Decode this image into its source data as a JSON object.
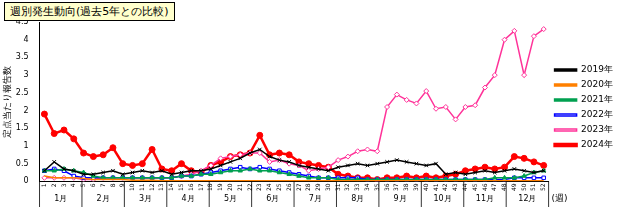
{
  "chart_data": {
    "type": "line",
    "title": "週別発生動向(過去5年との比較)",
    "y_label": "定点当たり報告数",
    "x_label": "(週)",
    "categories": [
      "1",
      "2",
      "3",
      "4",
      "5",
      "6",
      "7",
      "8",
      "9",
      "10",
      "11",
      "12",
      "13",
      "14",
      "15",
      "16",
      "17",
      "18",
      "19",
      "20",
      "21",
      "22",
      "23",
      "24",
      "25",
      "26",
      "27",
      "28",
      "29",
      "30",
      "31",
      "32",
      "33",
      "34",
      "35",
      "36",
      "37",
      "38",
      "39",
      "40",
      "41",
      "42",
      "43",
      "44",
      "45",
      "46",
      "47",
      "48",
      "49",
      "50",
      "51",
      "52"
    ],
    "months": [
      "1月",
      "2月",
      "3月",
      "4月",
      "5月",
      "6月",
      "7月",
      "8月",
      "9月",
      "10月",
      "11月",
      "12月"
    ],
    "ylim": [
      0,
      4.5
    ],
    "yticks": [
      0,
      0.5,
      1,
      1.5,
      2,
      2.5,
      3,
      3.5,
      4,
      4.5
    ],
    "grid": false,
    "legend": "right",
    "series": [
      {
        "name": "2019年",
        "color": "#000000",
        "marker": "cross",
        "values": [
          0.3,
          0.55,
          0.35,
          0.3,
          0.2,
          0.2,
          0.25,
          0.3,
          0.2,
          0.25,
          0.3,
          0.25,
          0.3,
          0.2,
          0.25,
          0.3,
          0.3,
          0.35,
          0.45,
          0.55,
          0.65,
          0.8,
          0.9,
          0.7,
          0.6,
          0.55,
          0.45,
          0.4,
          0.35,
          0.3,
          0.4,
          0.45,
          0.5,
          0.45,
          0.5,
          0.55,
          0.6,
          0.55,
          0.5,
          0.45,
          0.5,
          0.2,
          0.25,
          0.2,
          0.25,
          0.3,
          0.25,
          0.3,
          0.35,
          0.3,
          0.25,
          0.3
        ]
      },
      {
        "name": "2020年",
        "color": "#ff8000",
        "marker": "none",
        "values": [
          0.15,
          0.1,
          0.1,
          0.1,
          0.08,
          0.05,
          0.05,
          0.05,
          0.05,
          0.03,
          0.03,
          0.03,
          0.02,
          0.02,
          0.02,
          0.02,
          0.02,
          0.02,
          0.02,
          0.02,
          0.02,
          0.02,
          0.02,
          0.02,
          0.02,
          0.02,
          0.02,
          0.02,
          0.02,
          0.02,
          0.02,
          0.02,
          0.02,
          0.02,
          0.02,
          0.02,
          0.02,
          0.02,
          0.02,
          0.02,
          0.02,
          0.02,
          0.02,
          0.02,
          0.02,
          0.02,
          0.02,
          0.02,
          0.02,
          0.02,
          0.02,
          0.02
        ]
      },
      {
        "name": "2021年",
        "color": "#00a050",
        "marker": "triangle",
        "values": [
          0.3,
          0.3,
          0.35,
          0.3,
          0.25,
          0.15,
          0.1,
          0.1,
          0.1,
          0.1,
          0.1,
          0.1,
          0.1,
          0.1,
          0.15,
          0.15,
          0.2,
          0.2,
          0.25,
          0.3,
          0.3,
          0.35,
          0.3,
          0.3,
          0.25,
          0.2,
          0.15,
          0.1,
          0.1,
          0.1,
          0.05,
          0.05,
          0.05,
          0.05,
          0.05,
          0.05,
          0.05,
          0.05,
          0.05,
          0.05,
          0.05,
          0.05,
          0.05,
          0.05,
          0.05,
          0.05,
          0.1,
          0.1,
          0.1,
          0.15,
          0.25,
          0.3
        ]
      },
      {
        "name": "2022年",
        "color": "#0000ff",
        "marker": "square",
        "values": [
          0.3,
          0.35,
          0.3,
          0.15,
          0.1,
          0.1,
          0.1,
          0.1,
          0.1,
          0.1,
          0.1,
          0.1,
          0.1,
          0.1,
          0.15,
          0.15,
          0.2,
          0.25,
          0.3,
          0.35,
          0.4,
          0.35,
          0.4,
          0.35,
          0.3,
          0.25,
          0.2,
          0.15,
          0.1,
          0.1,
          0.1,
          0.1,
          0.1,
          0.05,
          0.05,
          0.05,
          0.05,
          0.05,
          0.05,
          0.05,
          0.05,
          0.05,
          0.05,
          0.05,
          0.05,
          0.05,
          0.05,
          0.05,
          0.1,
          0.1,
          0.1,
          0.1
        ]
      },
      {
        "name": "2023年",
        "color": "#ff3399",
        "marker": "diamond",
        "values": [
          0.1,
          0.1,
          0.1,
          0.1,
          0.05,
          0.05,
          0.1,
          0.1,
          0.1,
          0.1,
          0.1,
          0.1,
          0.1,
          0.1,
          0.15,
          0.2,
          0.3,
          0.45,
          0.65,
          0.7,
          0.75,
          0.8,
          0.8,
          0.55,
          0.6,
          0.5,
          0.45,
          0.3,
          0.35,
          0.4,
          0.6,
          0.7,
          0.85,
          0.9,
          0.85,
          2.1,
          2.45,
          2.3,
          2.2,
          2.55,
          2.05,
          2.1,
          1.75,
          2.1,
          2.15,
          2.65,
          3.0,
          4.0,
          4.25,
          3.0,
          4.1,
          4.3
        ]
      },
      {
        "name": "2024年",
        "color": "#ff0000",
        "marker": "circle",
        "values": [
          1.9,
          1.35,
          1.45,
          1.2,
          0.8,
          0.7,
          0.75,
          0.95,
          0.5,
          0.45,
          0.5,
          0.9,
          0.35,
          0.3,
          0.5,
          0.3,
          0.25,
          0.45,
          0.55,
          0.7,
          0.75,
          0.8,
          1.3,
          0.75,
          0.8,
          0.75,
          0.55,
          0.5,
          0.45,
          0.4,
          0.2,
          0.15,
          0.1,
          0.1,
          0.05,
          0.1,
          0.1,
          0.15,
          0.1,
          0.15,
          0.1,
          0.15,
          0.2,
          0.3,
          0.35,
          0.4,
          0.35,
          0.4,
          0.7,
          0.65,
          0.55,
          0.45
        ]
      }
    ]
  }
}
